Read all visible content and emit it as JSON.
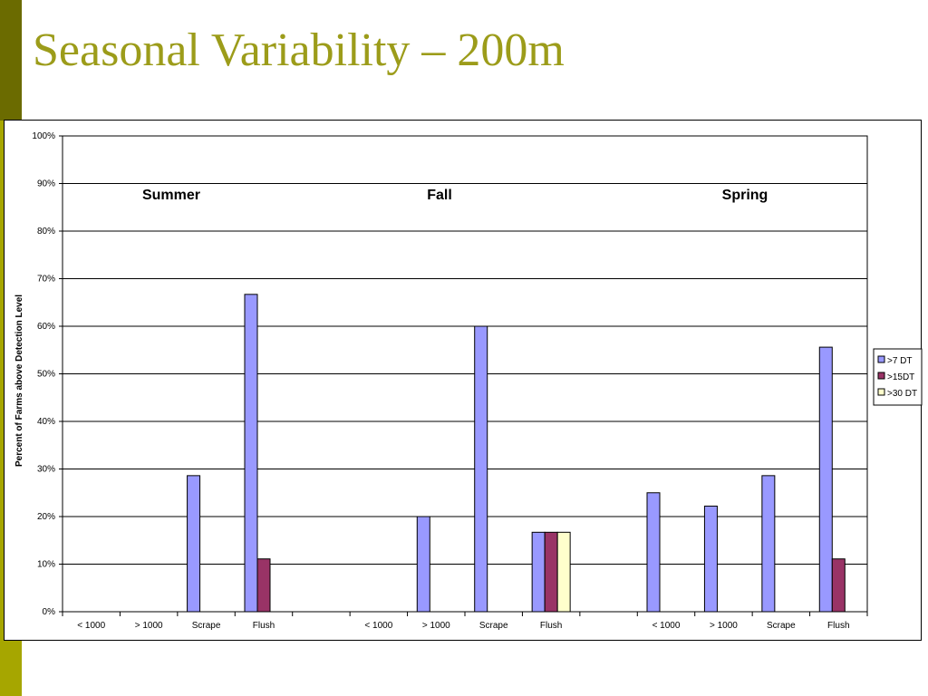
{
  "slide": {
    "title": "Seasonal Variability – 200m"
  },
  "colors": {
    "accent_dark": "#6b6b00",
    "accent_light": "#a6a600",
    "title": "#9c9c1a"
  },
  "chart_data": {
    "type": "bar",
    "title": "",
    "ylabel": "Percent of Farms above Detection Level",
    "xlabel": "",
    "ylim": [
      0,
      100
    ],
    "yticks": [
      "0%",
      "10%",
      "20%",
      "30%",
      "40%",
      "50%",
      "60%",
      "70%",
      "80%",
      "90%",
      "100%"
    ],
    "categories": [
      "< 1000",
      "> 1000",
      "Scrape",
      "Flush",
      "",
      "< 1000",
      "> 1000",
      "Scrape",
      "Flush",
      "",
      "< 1000",
      "> 1000",
      "Scrape",
      "Flush"
    ],
    "groups": [
      "Summer",
      "Fall",
      "Spring"
    ],
    "grid": true,
    "legend_position": "right",
    "series": [
      {
        "name": ">7 DT",
        "color": "#9999ff",
        "values": [
          0,
          0,
          28.6,
          66.7,
          null,
          0,
          20,
          60,
          16.7,
          null,
          25,
          22.2,
          28.6,
          55.6
        ]
      },
      {
        "name": ">15DT",
        "color": "#993366",
        "values": [
          0,
          0,
          0,
          11.1,
          null,
          0,
          0,
          0,
          16.7,
          null,
          0,
          0,
          0,
          11.1
        ]
      },
      {
        "name": ">30 DT",
        "color": "#ffffcc",
        "values": [
          0,
          0,
          0,
          0,
          null,
          0,
          0,
          0,
          16.7,
          null,
          0,
          0,
          0,
          0
        ]
      }
    ]
  }
}
